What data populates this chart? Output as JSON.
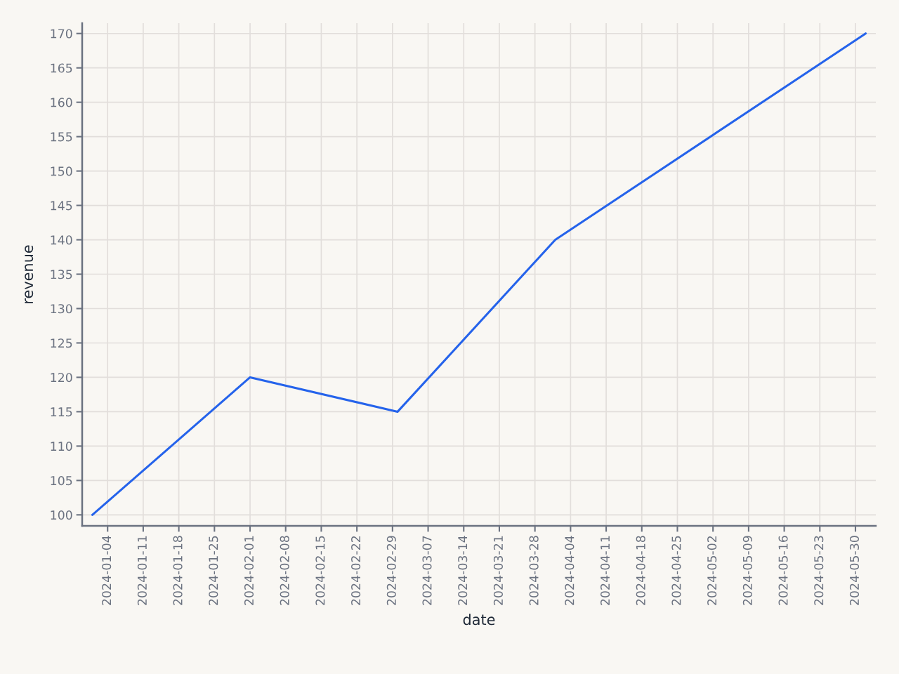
{
  "chart_data": {
    "type": "line",
    "xlabel": "date",
    "ylabel": "revenue",
    "x": [
      "2024-01-01",
      "2024-02-01",
      "2024-03-01",
      "2024-04-01",
      "2024-06-01"
    ],
    "series": [
      {
        "color": "#2563eb",
        "values": [
          100,
          120,
          115,
          140,
          170
        ]
      }
    ],
    "xlim": [
      "2023-12-30",
      "2024-06-03"
    ],
    "ylim": [
      98.4,
      171.5
    ],
    "xticks": [
      "2024-01-04",
      "2024-01-11",
      "2024-01-18",
      "2024-01-25",
      "2024-02-01",
      "2024-02-08",
      "2024-02-15",
      "2024-02-22",
      "2024-02-29",
      "2024-03-07",
      "2024-03-14",
      "2024-03-21",
      "2024-03-28",
      "2024-04-04",
      "2024-04-11",
      "2024-04-18",
      "2024-04-25",
      "2024-05-02",
      "2024-05-09",
      "2024-05-16",
      "2024-05-23",
      "2024-05-30"
    ],
    "yticks": [
      100,
      105,
      110,
      115,
      120,
      125,
      130,
      135,
      140,
      145,
      150,
      155,
      160,
      165,
      170
    ],
    "grid": true,
    "marker": "none",
    "line_style": "solid"
  }
}
